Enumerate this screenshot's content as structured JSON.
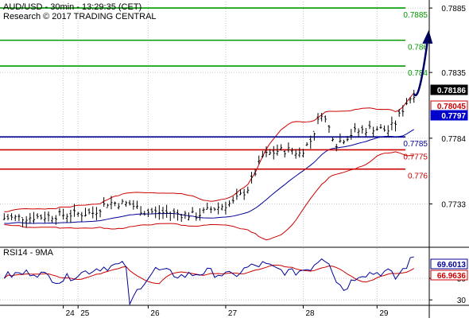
{
  "header": {
    "line1": "AUD/USD - 30min - 13:29:35 (CET)",
    "line2": "Research © 2017 TRADING CENTRAL"
  },
  "colors": {
    "resistance": "#009900",
    "pivot": "#000099",
    "support": "#cc0000",
    "candles": "#000000",
    "bollinger": "#cc0000",
    "moving_average": "#000099",
    "rsi_line": "#000099",
    "rsi_ma": "#cc0000",
    "arrow": "#000066",
    "grid": "#c8c8c8"
  },
  "chart_data": [
    {
      "type": "candlestick",
      "title": "AUD/USD - 30min - 13:29:35 (CET)",
      "ylim": [
        0.77,
        0.789
      ],
      "yticks": [
        {
          "label": "0.7885",
          "value": 0.7885
        },
        {
          "label": "0.7835",
          "value": 0.7835
        },
        {
          "label": "0.7784",
          "value": 0.7784
        },
        {
          "label": "0.7733",
          "value": 0.7733
        }
      ],
      "x_day_labels": [
        {
          "label": "24",
          "index": 18
        },
        {
          "label": "25",
          "index": 22
        },
        {
          "label": "26",
          "index": 41
        },
        {
          "label": "27",
          "index": 62
        },
        {
          "label": "28",
          "index": 83
        },
        {
          "label": "29",
          "index": 103
        }
      ],
      "n_bars": 115,
      "levels": [
        {
          "label": "0.7885",
          "value": 0.7885,
          "color": "#009900"
        },
        {
          "label": "0.786",
          "value": 0.786,
          "color": "#009900"
        },
        {
          "label": "0.784",
          "value": 0.784,
          "color": "#009900"
        },
        {
          "label": "0.7785",
          "value": 0.7785,
          "color": "#000099"
        },
        {
          "label": "0.7775",
          "value": 0.7775,
          "color": "#cc0000"
        },
        {
          "label": "0.776",
          "value": 0.776,
          "color": "#cc0000"
        }
      ],
      "price_tags": [
        {
          "label": "0.78186",
          "value": 0.78186,
          "bg": "#000000",
          "fg": "#ffffff"
        },
        {
          "label": "0.78045",
          "value": 0.78045,
          "bg": "#ffffff",
          "fg": "#cc0000",
          "border": "#cc0000"
        },
        {
          "label": "0.7797",
          "value": 0.7797,
          "bg": "#0000cc",
          "fg": "#ffffff"
        }
      ],
      "close_path": [
        [
          0,
          0.7722
        ],
        [
          10,
          0.7723
        ],
        [
          18,
          0.7725
        ],
        [
          24,
          0.7726
        ],
        [
          28,
          0.7734
        ],
        [
          34,
          0.7733
        ],
        [
          38,
          0.7727
        ],
        [
          45,
          0.7726
        ],
        [
          52,
          0.7724
        ],
        [
          56,
          0.7729
        ],
        [
          62,
          0.7734
        ],
        [
          66,
          0.7745
        ],
        [
          70,
          0.777
        ],
        [
          74,
          0.7774
        ],
        [
          78,
          0.7775
        ],
        [
          80,
          0.7772
        ],
        [
          83,
          0.7782
        ],
        [
          86,
          0.7804
        ],
        [
          88,
          0.7792
        ],
        [
          90,
          0.778
        ],
        [
          95,
          0.7789
        ],
        [
          100,
          0.7792
        ],
        [
          104,
          0.779
        ],
        [
          106,
          0.7796
        ],
        [
          109,
          0.7812
        ],
        [
          111,
          0.78186
        ]
      ],
      "forecast_arrow": {
        "from": [
          111,
          0.78186
        ],
        "to": [
          115,
          0.7866
        ]
      }
    },
    {
      "type": "line",
      "title": "RSI14 - 9MA",
      "ylim": [
        25,
        78
      ],
      "yticks": [
        {
          "label": "50",
          "value": 50
        },
        {
          "label": "30",
          "value": 30
        }
      ],
      "series": [
        {
          "name": "RSI14",
          "last_label": "69.6013",
          "last_value": 69.6013,
          "color": "#000099"
        },
        {
          "name": "9MA",
          "last_label": "66.9636",
          "last_value": 66.9636,
          "color": "#cc0000"
        }
      ],
      "rsi_path": [
        [
          0,
          52
        ],
        [
          8,
          56
        ],
        [
          15,
          48
        ],
        [
          20,
          54
        ],
        [
          26,
          60
        ],
        [
          31,
          62
        ],
        [
          34,
          62
        ],
        [
          34,
          26
        ],
        [
          37,
          44
        ],
        [
          41,
          58
        ],
        [
          48,
          52
        ],
        [
          55,
          56
        ],
        [
          62,
          52
        ],
        [
          66,
          60
        ],
        [
          70,
          63
        ],
        [
          74,
          58
        ],
        [
          78,
          55
        ],
        [
          83,
          60
        ],
        [
          86,
          70
        ],
        [
          88,
          66
        ],
        [
          90,
          48
        ],
        [
          92,
          40
        ],
        [
          96,
          54
        ],
        [
          100,
          55
        ],
        [
          104,
          56
        ],
        [
          106,
          50
        ],
        [
          109,
          62
        ],
        [
          111,
          69.6
        ]
      ]
    }
  ]
}
